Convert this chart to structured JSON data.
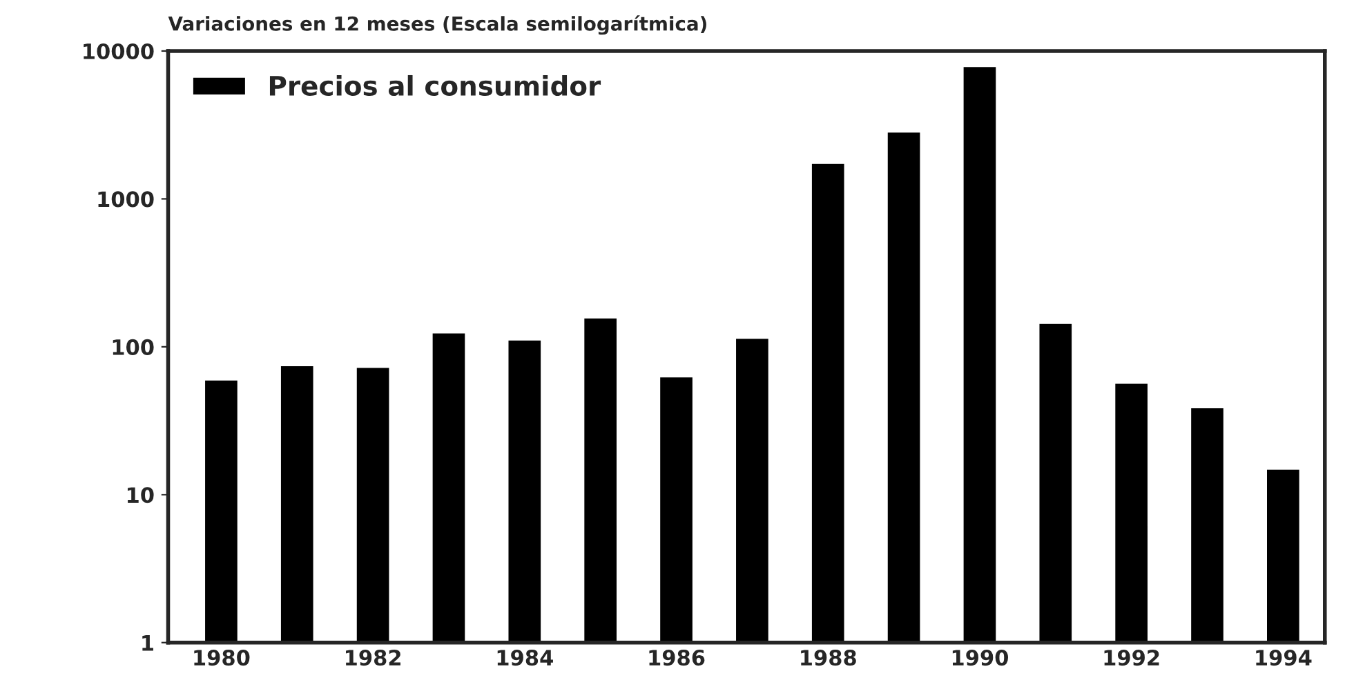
{
  "chart_data": {
    "type": "bar",
    "title": "Variaciones en 12 meses (Escala semilogarítmica)",
    "categories": [
      "1980",
      null,
      "1982",
      null,
      "1984",
      null,
      "1986",
      null,
      "1988",
      null,
      "1990",
      null,
      "1992",
      null,
      "1994"
    ],
    "series": [
      {
        "name": "Precios al consumidor",
        "color": "#000000",
        "values": [
          60,
          75,
          73,
          125,
          112,
          158,
          63,
          115,
          1750,
          2850,
          7900,
          145,
          57,
          39,
          15
        ]
      }
    ],
    "log": true,
    "ylim": [
      1,
      10000
    ],
    "yticks": [
      1,
      10,
      100,
      1000,
      10000
    ],
    "grid": false,
    "legend": "top left"
  }
}
